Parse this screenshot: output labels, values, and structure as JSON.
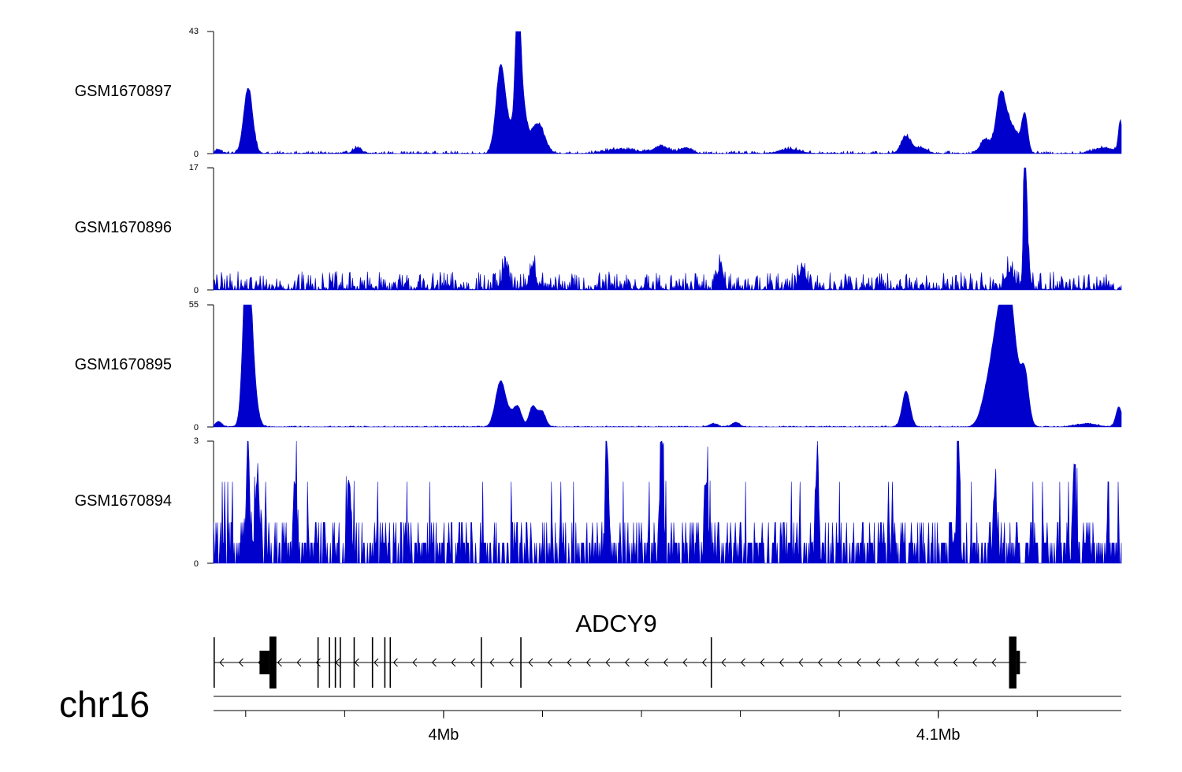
{
  "chart_data": {
    "type": "area",
    "chromosome": "chr16",
    "color": "#0000cc",
    "x_ticks": [
      {
        "value": 4.0,
        "label": "4Mb"
      },
      {
        "value": 4.1,
        "label": "4.1Mb"
      }
    ],
    "xlim": [
      3.9535,
      4.137
    ],
    "tracks": [
      {
        "name": "GSM1670897",
        "ylim": [
          0,
          43
        ],
        "y_ticks": [
          "0",
          "43"
        ],
        "noise": 0.9,
        "peaks": [
          [
            3.9545,
            1.5,
            0.0006
          ],
          [
            3.9605,
            23,
            0.0009
          ],
          [
            3.9825,
            2,
            0.0008
          ],
          [
            4.0115,
            28,
            0.0009
          ],
          [
            4.0135,
            8,
            0.0015
          ],
          [
            4.015,
            43,
            0.0005
          ],
          [
            4.0158,
            18,
            0.0008
          ],
          [
            4.0182,
            5,
            0.0012
          ],
          [
            4.0195,
            7,
            0.0012
          ],
          [
            4.036,
            1.5,
            0.003
          ],
          [
            4.044,
            2.5,
            0.0015
          ],
          [
            4.049,
            2,
            0.0012
          ],
          [
            4.07,
            1.5,
            0.002
          ],
          [
            4.0935,
            6,
            0.001
          ],
          [
            4.0965,
            2,
            0.0012
          ],
          [
            4.1095,
            5,
            0.001
          ],
          [
            4.1125,
            17,
            0.0009
          ],
          [
            4.114,
            10,
            0.0012
          ],
          [
            4.116,
            4,
            0.001
          ],
          [
            4.1175,
            13,
            0.0006
          ],
          [
            4.1335,
            2,
            0.002
          ],
          [
            4.1368,
            11,
            0.0004
          ]
        ]
      },
      {
        "name": "GSM1670896",
        "ylim": [
          0,
          17
        ],
        "y_ticks": [
          "0",
          "17"
        ],
        "noise": 2.6,
        "peaks": [
          [
            4.0125,
            3,
            0.0006
          ],
          [
            4.018,
            3,
            0.0006
          ],
          [
            4.056,
            3.5,
            0.0005
          ],
          [
            4.0725,
            3,
            0.0006
          ],
          [
            4.1145,
            2.5,
            0.0008
          ],
          [
            4.1175,
            17,
            0.00025
          ],
          [
            4.1178,
            8,
            0.0005
          ]
        ]
      },
      {
        "name": "GSM1670895",
        "ylim": [
          0,
          55
        ],
        "y_ticks": [
          "0",
          "55"
        ],
        "noise": 0.5,
        "peaks": [
          [
            3.9545,
            2.5,
            0.0006
          ],
          [
            3.9602,
            55,
            0.0007
          ],
          [
            3.9608,
            40,
            0.001
          ],
          [
            4.0115,
            20,
            0.001
          ],
          [
            4.0135,
            4,
            0.001
          ],
          [
            4.015,
            8,
            0.0008
          ],
          [
            4.018,
            9,
            0.0007
          ],
          [
            4.0198,
            7,
            0.0008
          ],
          [
            4.0545,
            1.5,
            0.0008
          ],
          [
            4.059,
            2,
            0.0008
          ],
          [
            4.0935,
            16,
            0.0008
          ],
          [
            4.1095,
            8,
            0.0012
          ],
          [
            4.112,
            40,
            0.0015
          ],
          [
            4.114,
            46,
            0.0012
          ],
          [
            4.1155,
            18,
            0.0012
          ],
          [
            4.1175,
            22,
            0.0008
          ],
          [
            4.13,
            1.5,
            0.002
          ],
          [
            4.1365,
            9,
            0.0006
          ]
        ]
      },
      {
        "name": "GSM1670894",
        "ylim": [
          0,
          3
        ],
        "y_ticks": [
          "0",
          "3"
        ],
        "noise": 1.15,
        "peaks": [
          [
            3.9605,
            3,
            0.0003
          ],
          [
            3.9625,
            2,
            0.0003
          ],
          [
            3.97,
            2,
            0.0003
          ],
          [
            3.981,
            2,
            0.0003
          ],
          [
            4.033,
            3,
            0.0003
          ],
          [
            4.044,
            3,
            0.0003
          ],
          [
            4.053,
            2,
            0.0003
          ],
          [
            4.0755,
            2,
            0.0003
          ],
          [
            4.104,
            3,
            0.0003
          ],
          [
            4.1115,
            2,
            0.0003
          ],
          [
            4.1275,
            2,
            0.0003
          ]
        ]
      }
    ],
    "gene": {
      "name": "ADCY9",
      "strand": "-",
      "start": 3.9535,
      "end": 4.1178,
      "exons": [
        [
          3.9535,
          3.9536,
          "line"
        ],
        [
          3.9628,
          3.9648,
          "thick"
        ],
        [
          3.9648,
          3.9662,
          "thicker"
        ],
        [
          3.9745,
          3.9746,
          "line"
        ],
        [
          3.9768,
          3.9769,
          "line"
        ],
        [
          3.978,
          3.9781,
          "line"
        ],
        [
          3.979,
          3.9792,
          "line"
        ],
        [
          3.9818,
          3.982,
          "line"
        ],
        [
          3.9855,
          3.9856,
          "line"
        ],
        [
          3.988,
          3.9882,
          "line"
        ],
        [
          3.9891,
          3.9893,
          "line"
        ],
        [
          4.0075,
          4.0077,
          "line"
        ],
        [
          4.0155,
          4.0156,
          "line"
        ],
        [
          4.054,
          4.0542,
          "line"
        ],
        [
          4.1143,
          4.1158,
          "thicker"
        ],
        [
          4.1158,
          4.1165,
          "thick"
        ]
      ]
    }
  }
}
